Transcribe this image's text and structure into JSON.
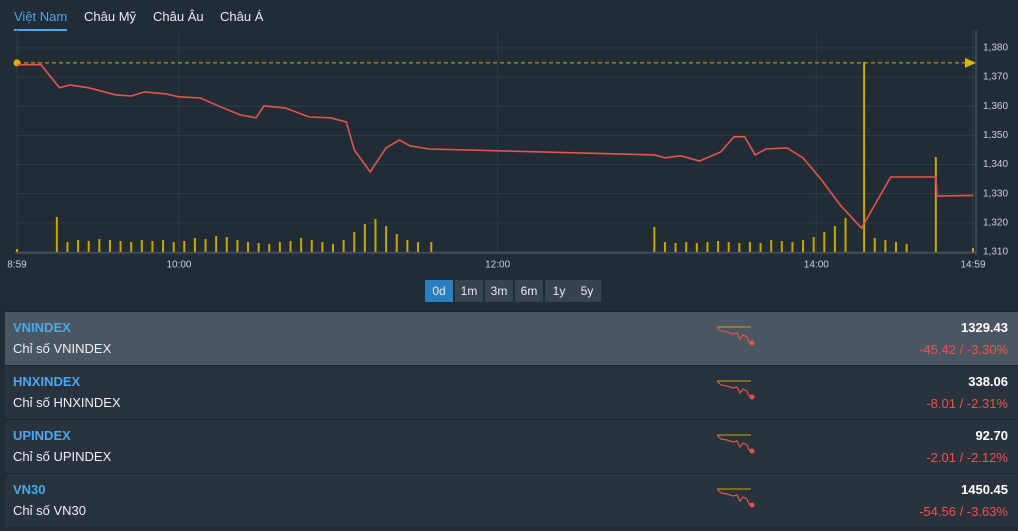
{
  "tabs": [
    "Việt Nam",
    "Châu Mỹ",
    "Châu Âu",
    "Châu Á"
  ],
  "chart_data": {
    "type": "line",
    "xlim": [
      539,
      899
    ],
    "xticks": [
      {
        "value": 539,
        "label": "8:59"
      },
      {
        "value": 600,
        "label": "10:00"
      },
      {
        "value": 720,
        "label": "12:00"
      },
      {
        "value": 840,
        "label": "14:00"
      },
      {
        "value": 899,
        "label": "14:59"
      }
    ],
    "ylim": [
      1310,
      1382
    ],
    "yticks": [
      {
        "value": 1310,
        "label": "1,310"
      },
      {
        "value": 1320,
        "label": "1,320"
      },
      {
        "value": 1330,
        "label": "1,330"
      },
      {
        "value": 1340,
        "label": "1,340"
      },
      {
        "value": 1350,
        "label": "1,350"
      },
      {
        "value": 1360,
        "label": "1,360"
      },
      {
        "value": 1370,
        "label": "1,370"
      },
      {
        "value": 1380,
        "label": "1,380"
      }
    ],
    "grid": true,
    "reference_value": 1374.85,
    "reference_color": "#d9b400",
    "series": [
      {
        "color": "#e0564a",
        "x": [
          539,
          548,
          555,
          559,
          566,
          576,
          582,
          587,
          595,
          600,
          608,
          613,
          623,
          629,
          632,
          640,
          649,
          657,
          663,
          666,
          672,
          678,
          683,
          687,
          694,
          779,
          783,
          789,
          796,
          804,
          809,
          813,
          817,
          821,
          829,
          835,
          842,
          849,
          857,
          862,
          868,
          885,
          885.4,
          899
        ],
        "values": [
          1374.2,
          1374.2,
          1366.3,
          1367.3,
          1366.3,
          1363.9,
          1363.5,
          1364.9,
          1364.2,
          1363.2,
          1362.8,
          1360.8,
          1357.0,
          1356.0,
          1360.1,
          1359.4,
          1356.3,
          1356.0,
          1354.6,
          1345.0,
          1337.5,
          1345.7,
          1348.4,
          1346.4,
          1345.3,
          1343.3,
          1342.3,
          1343.0,
          1341.2,
          1344.3,
          1349.5,
          1349.5,
          1343.3,
          1345.3,
          1345.7,
          1342.3,
          1334.7,
          1326.1,
          1318.2,
          1326.1,
          1335.7,
          1335.7,
          1329.2,
          1329.4
        ]
      }
    ],
    "volume": {
      "color": "#c8a800",
      "x": [
        539,
        554,
        558,
        562,
        566,
        570,
        574,
        578,
        582,
        586,
        590,
        594,
        598,
        602,
        606,
        610,
        614,
        618,
        622,
        626,
        630,
        634,
        638,
        642,
        646,
        650,
        654,
        658,
        662,
        666,
        670,
        674,
        678,
        682,
        686,
        690,
        695,
        779,
        783,
        787,
        791,
        795,
        799,
        803,
        807,
        811,
        815,
        819,
        823,
        827,
        831,
        835,
        839,
        843,
        847,
        851,
        858,
        862,
        866,
        870,
        874,
        885,
        899
      ],
      "values": [
        3,
        35,
        10,
        12,
        11,
        13,
        12,
        11,
        10,
        12,
        11,
        12,
        10,
        11,
        14,
        13,
        16,
        15,
        12,
        10,
        9,
        8,
        10,
        11,
        14,
        12,
        10,
        8,
        12,
        20,
        28,
        33,
        26,
        18,
        12,
        10,
        10,
        25,
        10,
        9,
        10,
        9,
        10,
        11,
        10,
        9,
        10,
        9,
        12,
        11,
        10,
        12,
        15,
        20,
        26,
        34,
        190,
        14,
        12,
        10,
        8,
        95,
        4
      ]
    }
  },
  "periods": [
    "0d",
    "1m",
    "3m",
    "6m",
    "1y",
    "5y"
  ],
  "indices": [
    {
      "code": "VNINDEX",
      "name": "Chỉ số VNINDEX",
      "value": "1329.43",
      "change": "-45.42",
      "percent": "-3.30%"
    },
    {
      "code": "HNXINDEX",
      "name": "Chỉ số HNXINDEX",
      "value": "338.06",
      "change": "-8.01",
      "percent": "-2.31%"
    },
    {
      "code": "UPINDEX",
      "name": "Chỉ số UPINDEX",
      "value": "92.70",
      "change": "-2.01",
      "percent": "-2.12%"
    },
    {
      "code": "VN30",
      "name": "Chỉ số VN30",
      "value": "1450.45",
      "change": "-54.56",
      "percent": "-3.63%"
    }
  ]
}
